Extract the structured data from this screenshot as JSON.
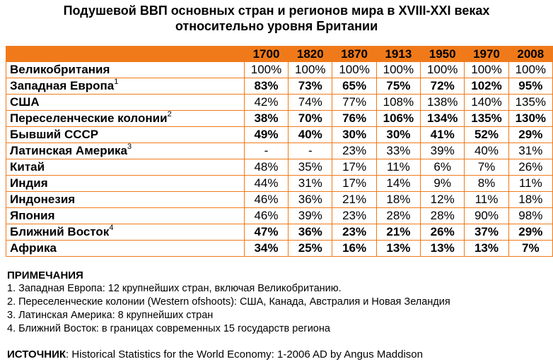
{
  "title_line1": "Подушевой ВВП основных стран и регионов мира в XVIII-XXI веках",
  "title_line2": "относительно уровня Британии",
  "chart_data": {
    "type": "table",
    "columns": [
      "1700",
      "1820",
      "1870",
      "1913",
      "1950",
      "1970",
      "2008"
    ],
    "rows": [
      {
        "name": "Великобритания",
        "note": "",
        "bold": false,
        "values": [
          "100%",
          "100%",
          "100%",
          "100%",
          "100%",
          "100%",
          "100%"
        ]
      },
      {
        "name": "Западная Европа",
        "note": "1",
        "bold": true,
        "values": [
          "83%",
          "73%",
          "65%",
          "75%",
          "72%",
          "102%",
          "95%"
        ]
      },
      {
        "name": "США",
        "note": "",
        "bold": false,
        "values": [
          "42%",
          "74%",
          "77%",
          "108%",
          "138%",
          "140%",
          "135%"
        ]
      },
      {
        "name": "Переселенческие колонии",
        "note": "2",
        "bold": true,
        "values": [
          "38%",
          "70%",
          "76%",
          "106%",
          "134%",
          "135%",
          "130%"
        ]
      },
      {
        "name": "Бывший СССР",
        "note": "",
        "bold": true,
        "values": [
          "49%",
          "40%",
          "30%",
          "30%",
          "41%",
          "52%",
          "29%"
        ]
      },
      {
        "name": "Латинская Америка",
        "note": "3",
        "bold": false,
        "values": [
          "-",
          "-",
          "23%",
          "33%",
          "39%",
          "40%",
          "31%"
        ]
      },
      {
        "name": "Китай",
        "note": "",
        "bold": false,
        "values": [
          "48%",
          "35%",
          "17%",
          "11%",
          "6%",
          "7%",
          "26%"
        ]
      },
      {
        "name": "Индия",
        "note": "",
        "bold": false,
        "values": [
          "44%",
          "31%",
          "17%",
          "14%",
          "9%",
          "8%",
          "11%"
        ]
      },
      {
        "name": "Индонезия",
        "note": "",
        "bold": false,
        "values": [
          "46%",
          "36%",
          "21%",
          "18%",
          "12%",
          "11%",
          "18%"
        ]
      },
      {
        "name": "Япония",
        "note": "",
        "bold": false,
        "values": [
          "46%",
          "39%",
          "23%",
          "28%",
          "28%",
          "90%",
          "98%"
        ]
      },
      {
        "name": "Ближний Восток",
        "note": "4",
        "bold": true,
        "values": [
          "47%",
          "36%",
          "23%",
          "21%",
          "26%",
          "37%",
          "29%"
        ]
      },
      {
        "name": "Африка",
        "note": "",
        "bold": true,
        "values": [
          "34%",
          "25%",
          "16%",
          "13%",
          "13%",
          "13%",
          "7%"
        ]
      }
    ]
  },
  "notes": {
    "heading": "ПРИМЕЧАНИЯ",
    "items": [
      "1. Западная Европа:  12 крупнейших стран, включая Великобританию.",
      "2. Переселенческие колонии (Western ofshoots): США, Канада, Австралия и Новая Зеландия",
      "3. Латинская Америка: 8 крупнейших стран",
      "4. Ближний Восток: в границах современных 15 государств региона"
    ]
  },
  "source": {
    "label": "ИСТОЧНИК",
    "text": ": Historical Statistics for the World Economy:   1-2006 AD by Angus Maddison"
  },
  "colors": {
    "header_fill": "#f07a1a",
    "border": "#f07a1a"
  }
}
